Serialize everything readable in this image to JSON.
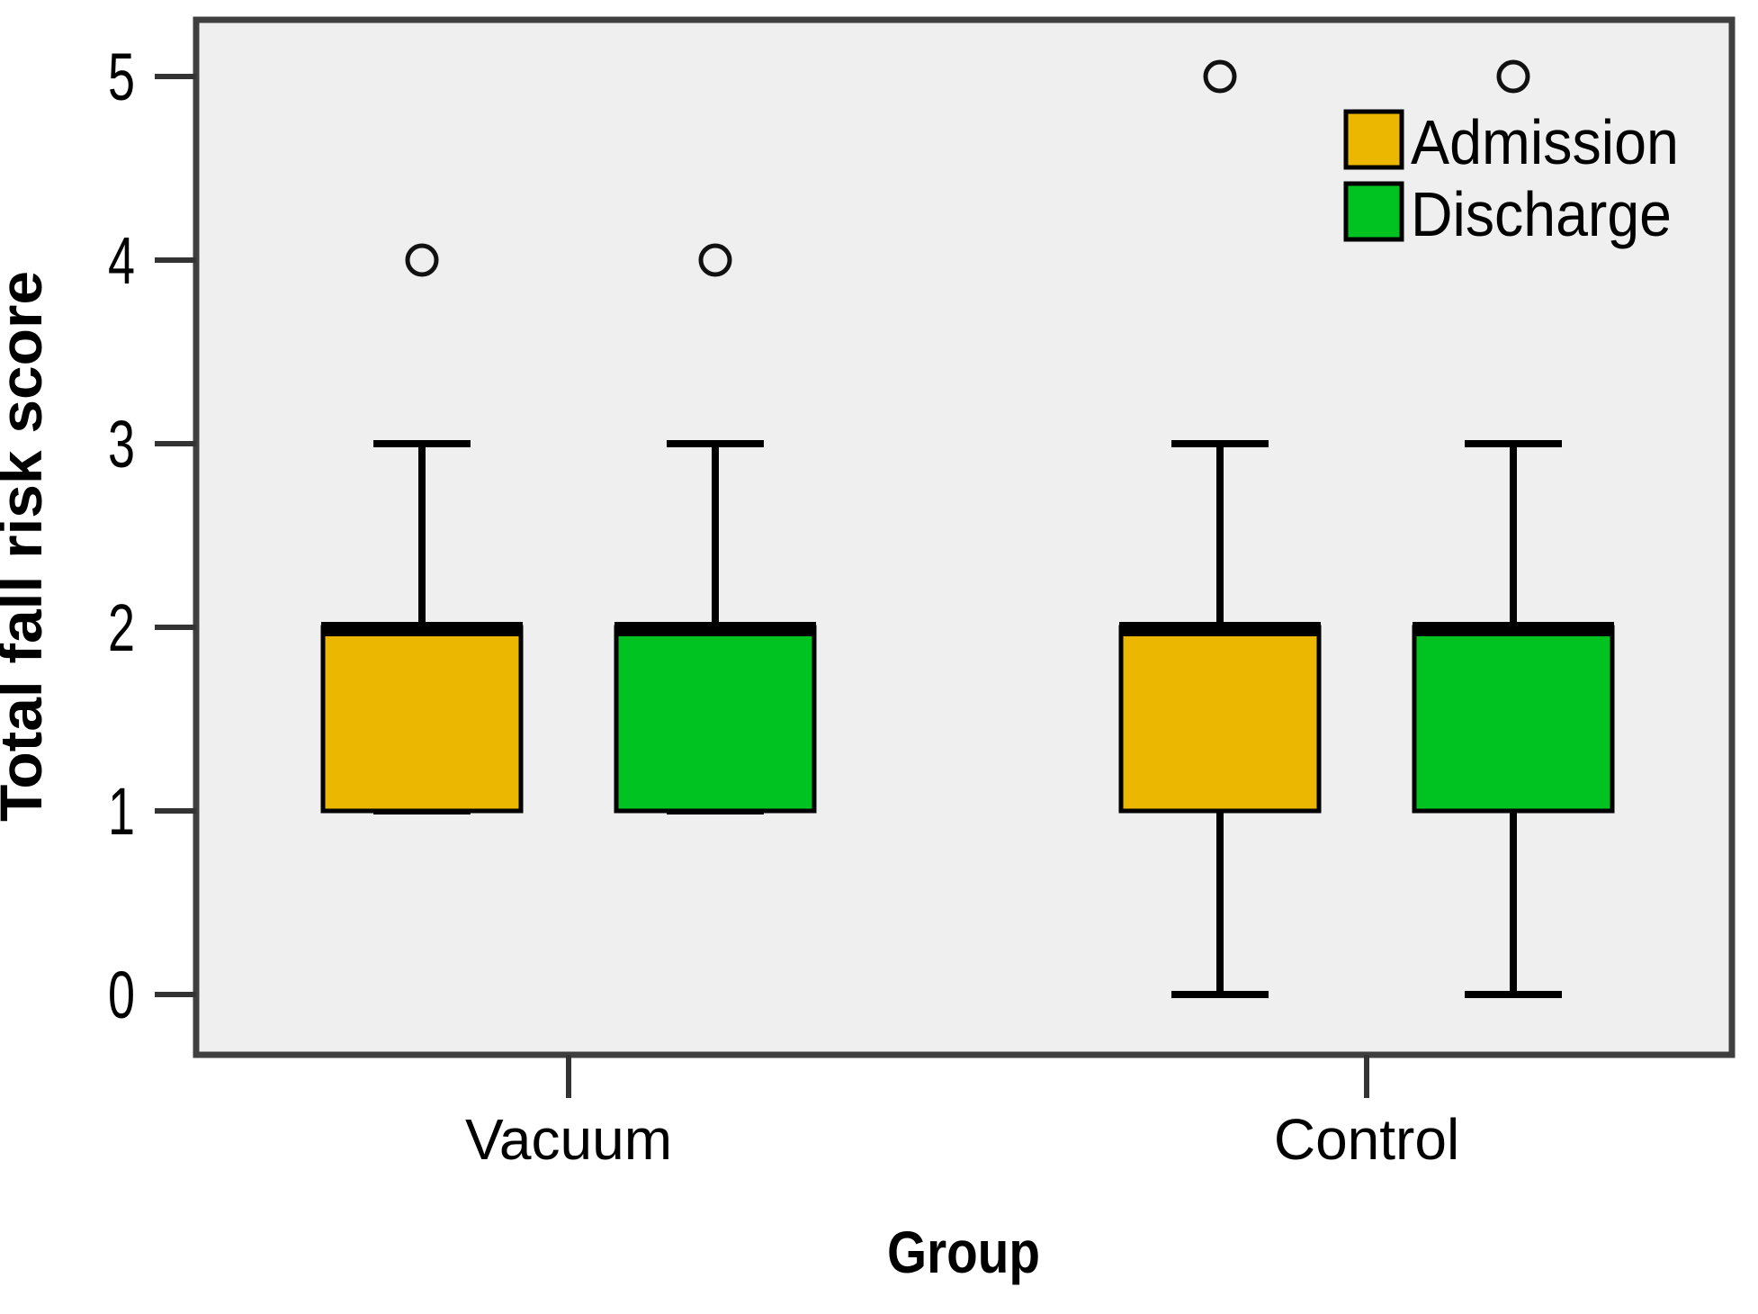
{
  "figure": {
    "background": "#ffffff",
    "plot_background": "#efefef",
    "frame_color": "#3f3f3f",
    "line_color": "#000000"
  },
  "chart_data": {
    "type": "boxplot",
    "title": "",
    "xlabel": "Group",
    "ylabel": "Total fall risk score",
    "categories": [
      "Vacuum",
      "Control"
    ],
    "yticks": [
      0,
      1,
      2,
      3,
      4,
      5
    ],
    "ylim": [
      0,
      5
    ],
    "grid": false,
    "legend_position": "top-right",
    "series": [
      {
        "name": "Admission",
        "color": "#ebb700",
        "boxes": [
          {
            "category": "Vacuum",
            "min": 1,
            "q1": 1,
            "median": 2,
            "q3": 2,
            "max": 3,
            "outliers": [
              4
            ]
          },
          {
            "category": "Control",
            "min": 0,
            "q1": 1,
            "median": 2,
            "q3": 2,
            "max": 3,
            "outliers": [
              5
            ]
          }
        ]
      },
      {
        "name": "Discharge",
        "color": "#00c221",
        "boxes": [
          {
            "category": "Vacuum",
            "min": 1,
            "q1": 1,
            "median": 2,
            "q3": 2,
            "max": 3,
            "outliers": [
              4
            ]
          },
          {
            "category": "Control",
            "min": 0,
            "q1": 1,
            "median": 2,
            "q3": 2,
            "max": 3,
            "outliers": [
              5
            ]
          }
        ]
      }
    ]
  }
}
